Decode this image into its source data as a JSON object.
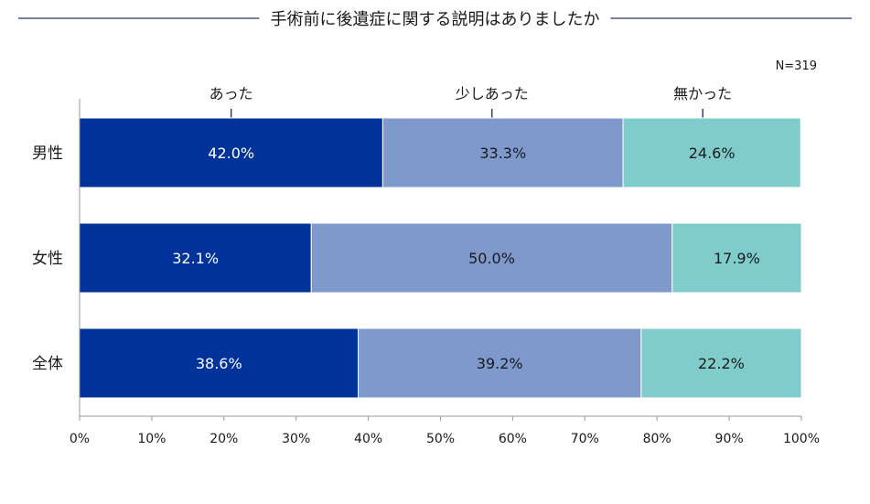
{
  "chart_data": {
    "type": "bar",
    "orientation": "horizontal",
    "stacked": true,
    "title": "手術前に後遺症に関する説明はありましたか",
    "sample_note": "N=319",
    "categories": [
      "男性",
      "女性",
      "全体"
    ],
    "series": [
      {
        "name": "あった",
        "color": "#003399",
        "label_color": "#ffffff",
        "values": [
          42.0,
          32.1,
          38.6
        ]
      },
      {
        "name": "少しあった",
        "color": "#7f99cc",
        "label_color": "#1a1a1a",
        "values": [
          33.3,
          50.0,
          39.2
        ]
      },
      {
        "name": "無かった",
        "color": "#80cccc",
        "label_color": "#1a1a1a",
        "values": [
          24.6,
          17.9,
          22.2
        ]
      }
    ],
    "value_labels": [
      [
        "42.0%",
        "33.3%",
        "24.6%"
      ],
      [
        "32.1%",
        "50.0%",
        "17.9%"
      ],
      [
        "38.6%",
        "39.2%",
        "22.2%"
      ]
    ],
    "xlim": [
      0,
      100
    ],
    "xticks": [
      0,
      10,
      20,
      30,
      40,
      50,
      60,
      70,
      80,
      90,
      100
    ],
    "xtick_labels": [
      "0%",
      "10%",
      "20%",
      "30%",
      "40%",
      "50%",
      "60%",
      "70%",
      "80%",
      "90%",
      "100%"
    ],
    "legend_placement": "above first bar, at segment centers",
    "grid": false,
    "title_rule_color": "#1f3864",
    "axis_color": "#999999"
  }
}
